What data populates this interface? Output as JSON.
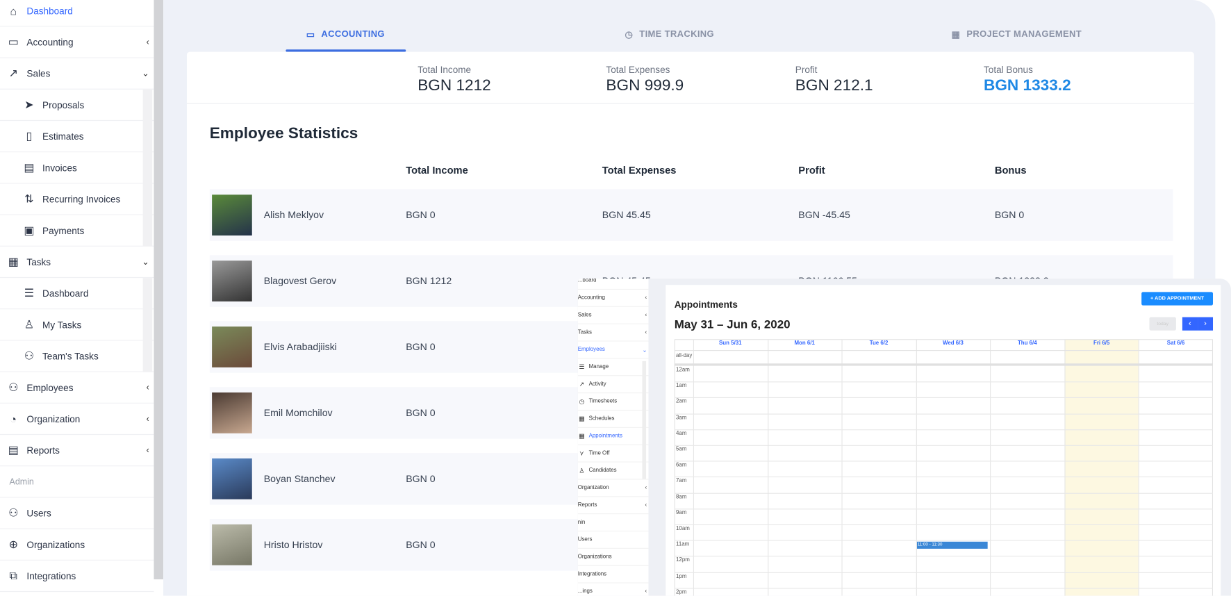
{
  "sidebar": {
    "items": [
      {
        "label": "Dashboard",
        "icon": "home-icon",
        "active": true
      },
      {
        "label": "Accounting",
        "icon": "card-icon",
        "chevron": "‹"
      },
      {
        "label": "Sales",
        "icon": "trend-icon",
        "chevron": "⌄"
      },
      {
        "label": "Proposals",
        "icon": "send-icon",
        "sub": true
      },
      {
        "label": "Estimates",
        "icon": "file-icon",
        "sub": true
      },
      {
        "label": "Invoices",
        "icon": "invoice-icon",
        "sub": true
      },
      {
        "label": "Recurring Invoices",
        "icon": "recurring-icon",
        "sub": true
      },
      {
        "label": "Payments",
        "icon": "wallet-icon",
        "sub": true
      },
      {
        "label": "Tasks",
        "icon": "tasks-icon",
        "chevron": "⌄"
      },
      {
        "label": "Dashboard",
        "icon": "list-icon",
        "sub": true
      },
      {
        "label": "My Tasks",
        "icon": "user-icon",
        "sub": true
      },
      {
        "label": "Team's Tasks",
        "icon": "users-icon",
        "sub": true
      },
      {
        "label": "Employees",
        "icon": "users-icon",
        "chevron": "‹"
      },
      {
        "label": "Organization",
        "icon": "organization-icon",
        "chevron": "‹"
      },
      {
        "label": "Reports",
        "icon": "report-icon",
        "chevron": "‹"
      },
      {
        "label": "Admin",
        "section": true
      },
      {
        "label": "Users",
        "icon": "users-icon"
      },
      {
        "label": "Organizations",
        "icon": "globe-icon"
      },
      {
        "label": "Integrations",
        "icon": "integrations-icon"
      }
    ]
  },
  "tabs": [
    {
      "label": "ACCOUNTING",
      "icon": "card-icon",
      "active": true
    },
    {
      "label": "TIME TRACKING",
      "icon": "clock-icon"
    },
    {
      "label": "PROJECT MANAGEMENT",
      "icon": "calendar-icon"
    }
  ],
  "summary": [
    {
      "label": "Total Income",
      "value": "BGN 1212"
    },
    {
      "label": "Total Expenses",
      "value": "BGN 999.9"
    },
    {
      "label": "Profit",
      "value": "BGN 212.1"
    },
    {
      "label": "Total Bonus",
      "value": "BGN 1333.2",
      "color": "#1e88e5"
    }
  ],
  "stats": {
    "title": "Employee Statistics",
    "headers": [
      "Total Income",
      "Total Expenses",
      "Profit",
      "Bonus"
    ],
    "rows": [
      {
        "name": "Alish Meklyov",
        "income": "BGN 0",
        "expenses": "BGN 45.45",
        "profit": "BGN -45.45",
        "bonus": "BGN 0"
      },
      {
        "name": "Blagovest Gerov",
        "income": "BGN 1212",
        "expenses": "BGN 45.45",
        "profit": "BGN 1166.55",
        "bonus": "BGN 1333.2"
      },
      {
        "name": "Elvis Arabadjiiski",
        "income": "BGN 0"
      },
      {
        "name": "Emil Momchilov",
        "income": "BGN 0"
      },
      {
        "name": "Boyan Stanchev",
        "income": "BGN 0"
      },
      {
        "name": "Hristo Hristov",
        "income": "BGN 0"
      }
    ]
  },
  "overlay": {
    "sidebar": [
      {
        "label": "...board"
      },
      {
        "label": "Accounting",
        "chevron": "‹"
      },
      {
        "label": "Sales",
        "chevron": "‹"
      },
      {
        "label": "Tasks",
        "chevron": "‹"
      },
      {
        "label": "Employees",
        "chevron": "⌄",
        "active": true
      },
      {
        "label": "Manage",
        "icon": "☰",
        "sub": true
      },
      {
        "label": "Activity",
        "icon": "↗",
        "sub": true
      },
      {
        "label": "Timesheets",
        "icon": "◷",
        "sub": true
      },
      {
        "label": "Schedules",
        "icon": "▦",
        "sub": true
      },
      {
        "label": "Appointments",
        "icon": "▦",
        "sub": true,
        "active": true
      },
      {
        "label": "Time Off",
        "icon": "⋎",
        "sub": true
      },
      {
        "label": "Candidates",
        "icon": "♙",
        "sub": true
      },
      {
        "label": "Organization",
        "chevron": "‹"
      },
      {
        "label": "Reports",
        "chevron": "‹"
      },
      {
        "label": "nin"
      },
      {
        "label": "Users"
      },
      {
        "label": "Organizations"
      },
      {
        "label": "Integrations"
      },
      {
        "label": "...ings",
        "chevron": "‹"
      }
    ],
    "title": "Appointments",
    "add_button": "+ ADD APPOINTMENT",
    "range": "May 31 – Jun 6, 2020",
    "today": "today",
    "days": [
      "Sun 5/31",
      "Mon 6/1",
      "Tue 6/2",
      "Wed 6/3",
      "Thu 6/4",
      "Fri 6/5",
      "Sat 6/6"
    ],
    "allday": "all-day",
    "hours": [
      "12am",
      "1am",
      "2am",
      "3am",
      "4am",
      "5am",
      "6am",
      "7am",
      "8am",
      "9am",
      "10am",
      "11am",
      "12pm",
      "1pm",
      "2pm"
    ],
    "event": {
      "label": "11:00 - 11:30",
      "day": "Wed 6/3",
      "start": "11am"
    },
    "highlight_day": "Fri 6/5",
    "colors": {
      "event": "#3a87d6",
      "today": "#fdf8e1",
      "primary": "#3366ff",
      "add": "#1a8cff"
    }
  }
}
